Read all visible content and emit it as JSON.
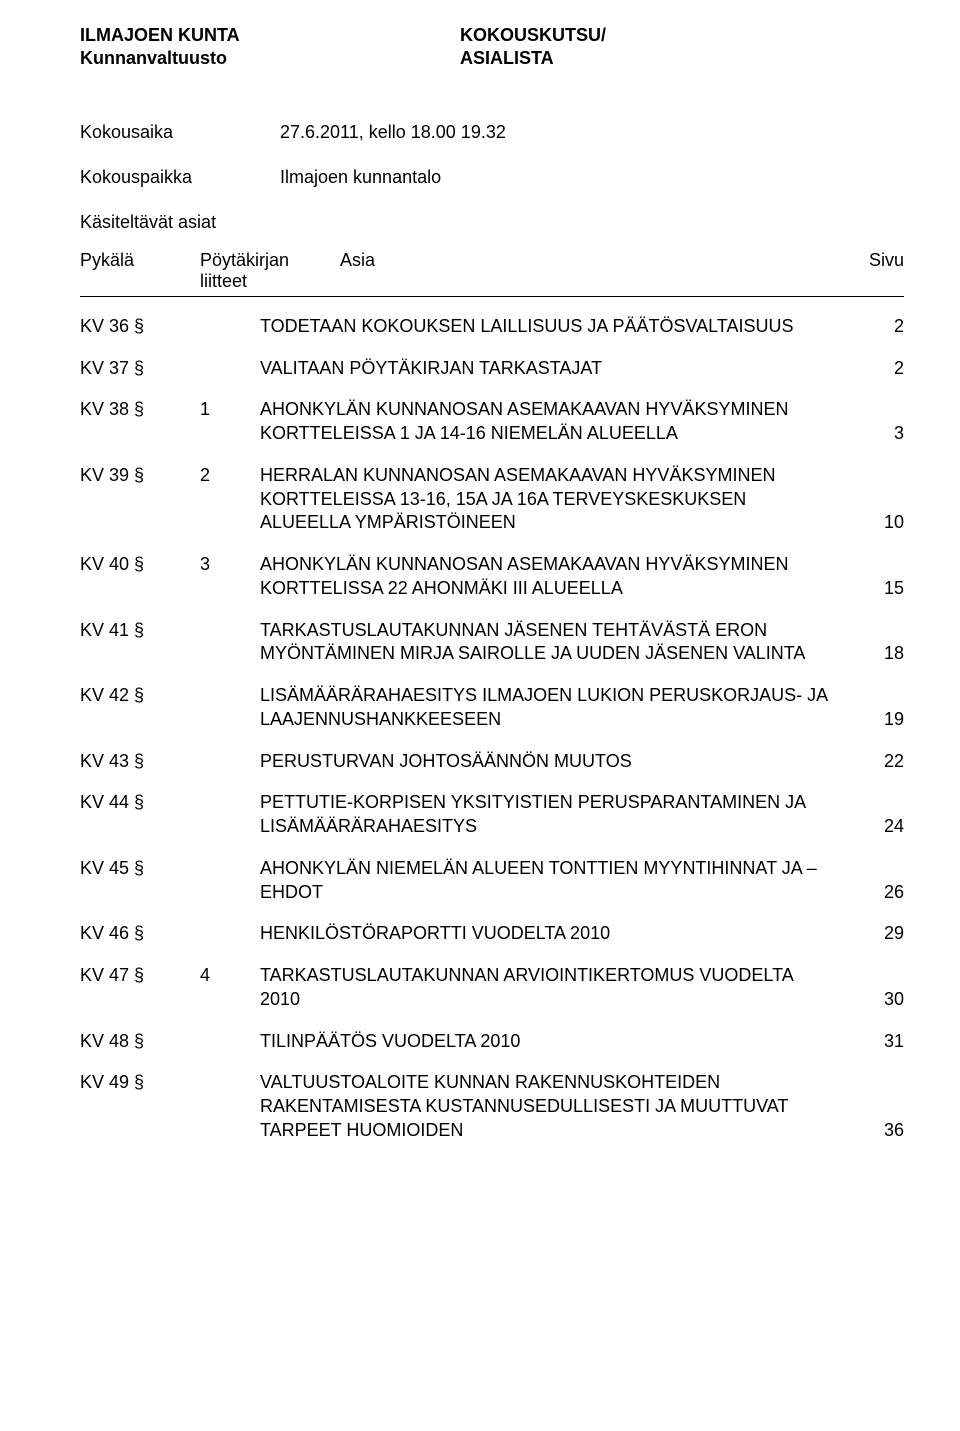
{
  "header": {
    "left_line1": "ILMAJOEN KUNTA",
    "left_line2": "Kunnanvaltuusto",
    "right_line1": "KOKOUSKUTSU/",
    "right_line2": "ASIALISTA"
  },
  "meta": {
    "time_label": "Kokousaika",
    "time_value": "27.6.2011, kello 18.00 19.32",
    "place_label": "Kokouspaikka",
    "place_value": "Ilmajoen kunnantalo",
    "matters_label": "Käsiteltävät asiat"
  },
  "subheader": {
    "col1": "Pykälä",
    "col2a": "Pöytäkirjan",
    "col2b": "liitteet",
    "col3": "Asia",
    "col4": "Sivu"
  },
  "items": [
    {
      "ref": "KV 36 §",
      "att": "",
      "title": "TODETAAN KOKOUKSEN LAILLISUUS JA PÄÄTÖSVALTAISUUS",
      "page": "2"
    },
    {
      "ref": "KV 37 §",
      "att": "",
      "title": "VALITAAN PÖYTÄKIRJAN TARKASTAJAT",
      "page": "2"
    },
    {
      "ref": "KV 38 §",
      "att": "1",
      "title": "AHONKYLÄN KUNNANOSAN ASEMAKAAVAN HYVÄKSYMINEN KORTTELEISSA 1 JA 14-16 NIEMELÄN ALUEELLA",
      "page": "3"
    },
    {
      "ref": "KV 39 §",
      "att": "2",
      "title": "HERRALAN KUNNANOSAN ASEMAKAAVAN HYVÄKSYMINEN  KORTTELEISSA 13-16, 15A JA 16A TERVEYSKESKUKSEN ALUEELLA YMPÄRISTÖINEEN",
      "page": "10"
    },
    {
      "ref": "KV 40 §",
      "att": "3",
      "title": "AHONKYLÄN KUNNANOSAN ASEMAKAAVAN HYVÄKSYMINEN KORTTELISSA 22 AHONMÄKI III ALUEELLA",
      "page": "15"
    },
    {
      "ref": "KV 41 §",
      "att": "",
      "title": "TARKASTUSLAUTAKUNNAN JÄSENEN TEHTÄVÄSTÄ ERON MYÖNTÄMINEN MIRJA SAIROLLE JA UUDEN JÄSENEN VALINTA",
      "page": "18"
    },
    {
      "ref": "KV 42 §",
      "att": "",
      "title": "LISÄMÄÄRÄRAHAESITYS ILMAJOEN LUKION PERUSKORJAUS- JA LAAJENNUSHANKKEESEEN",
      "page": "19"
    },
    {
      "ref": "KV 43 §",
      "att": "",
      "title": "PERUSTURVAN JOHTOSÄÄNNÖN MUUTOS",
      "page": "22"
    },
    {
      "ref": "KV 44 §",
      "att": "",
      "title": "PETTUTIE-KORPISEN YKSITYISTIEN PERUSPARANTAMINEN JA LISÄMÄÄRÄRAHAESITYS",
      "page": "24"
    },
    {
      "ref": "KV 45 §",
      "att": "",
      "title": "AHONKYLÄN NIEMELÄN ALUEEN TONTTIEN MYYNTIHINNAT JA –EHDOT",
      "page": "26"
    },
    {
      "ref": "KV 46 §",
      "att": "",
      "title": "HENKILÖSTÖRAPORTTI VUODELTA 2010",
      "page": "29"
    },
    {
      "ref": "KV 47 §",
      "att": "4",
      "title": "TARKASTUSLAUTAKUNNAN ARVIOINTIKERTOMUS VUODELTA 2010",
      "page": "30"
    },
    {
      "ref": "KV 48 §",
      "att": "",
      "title": "TILINPÄÄTÖS VUODELTA 2010",
      "page": "31"
    },
    {
      "ref": "KV 49 §",
      "att": "",
      "title": "VALTUUSTOALOITE KUNNAN RAKENNUSKOHTEIDEN RAKENTAMISESTA KUSTANNUSEDULLISESTI JA MUUTTUVAT TARPEET HUOMIOIDEN",
      "page": "36"
    }
  ]
}
